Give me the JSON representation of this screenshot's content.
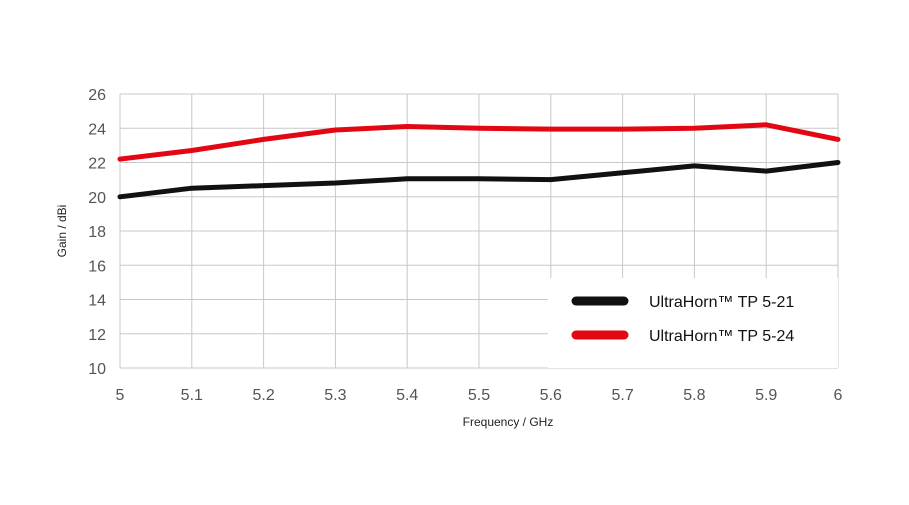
{
  "chart_data": {
    "type": "line",
    "xlabel": "Frequency / GHz",
    "ylabel": "Gain / dBi",
    "xlim": [
      5,
      6
    ],
    "ylim": [
      10,
      26
    ],
    "x_ticks": [
      "5",
      "5.1",
      "5.2",
      "5.3",
      "5.4",
      "5.5",
      "5.6",
      "5.7",
      "5.8",
      "5.9",
      "6"
    ],
    "y_ticks": [
      "10",
      "12",
      "14",
      "16",
      "18",
      "20",
      "22",
      "24",
      "26"
    ],
    "grid": true,
    "legend_position": "bottom-right",
    "series": [
      {
        "name": "UltraHorn™ TP 5-21",
        "color": "#111111",
        "x": [
          5,
          5.1,
          5.2,
          5.3,
          5.4,
          5.5,
          5.6,
          5.7,
          5.8,
          5.9,
          6
        ],
        "values": [
          20.0,
          20.5,
          20.65,
          20.8,
          21.05,
          21.05,
          21.0,
          21.4,
          21.8,
          21.5,
          22.0
        ]
      },
      {
        "name": "UltraHorn™ TP 5-24",
        "color": "#e30613",
        "x": [
          5,
          5.1,
          5.2,
          5.3,
          5.4,
          5.5,
          5.6,
          5.7,
          5.8,
          5.9,
          6
        ],
        "values": [
          22.2,
          22.7,
          23.35,
          23.9,
          24.1,
          24.0,
          23.95,
          23.95,
          24.0,
          24.2,
          23.35
        ]
      }
    ]
  }
}
